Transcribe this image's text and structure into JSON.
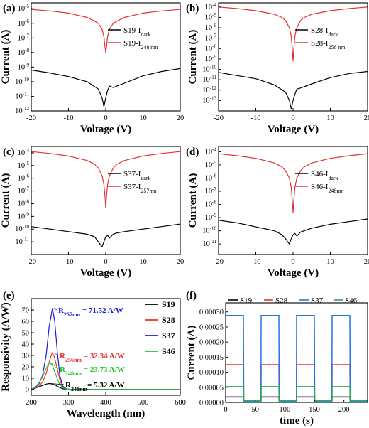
{
  "chart_data": [
    {
      "panel": "(a)",
      "type": "line",
      "xlabel": "Voltage (V)",
      "ylabel": "Current (A)",
      "xlim": [
        -20,
        20
      ],
      "ylim_log10": [
        -12,
        -4.6
      ],
      "y_scale": "log",
      "xticks": [
        "-20",
        "-10",
        "0",
        "10",
        "20"
      ],
      "yticks": [
        -12,
        -11,
        -10,
        -9,
        -8,
        -7,
        -6,
        -5
      ],
      "legend_position": "right-middle",
      "legend": [
        {
          "base": "S19-I",
          "sub": "dark",
          "color": "#000000"
        },
        {
          "base": "S19-I",
          "sub": "248 nm",
          "color": "#e53030"
        }
      ],
      "series": [
        {
          "role": "dark",
          "color": "#000000",
          "x": [
            -20,
            -15,
            -10,
            -5,
            -2,
            -1,
            -0.5,
            0,
            0.5,
            1,
            2,
            5,
            10,
            15,
            20
          ],
          "log10_y": [
            -9.2,
            -9.4,
            -9.65,
            -10.0,
            -10.5,
            -11.1,
            -11.7,
            -11.1,
            -10.6,
            -10.3,
            -10.4,
            -10.1,
            -9.6,
            -9.3,
            -9.1
          ]
        },
        {
          "role": "light",
          "color": "#e53030",
          "x": [
            -20,
            -15,
            -10,
            -5,
            -3,
            -2,
            -1,
            -0.5,
            -0.2,
            0,
            0.2,
            0.5,
            1,
            2,
            3,
            5,
            10,
            15,
            20
          ],
          "log10_y": [
            -5.05,
            -5.15,
            -5.3,
            -5.6,
            -5.85,
            -6.0,
            -6.4,
            -6.9,
            -7.6,
            -8.0,
            -7.6,
            -6.9,
            -6.4,
            -6.0,
            -5.85,
            -5.6,
            -5.3,
            -5.15,
            -5.05
          ]
        }
      ]
    },
    {
      "panel": "(b)",
      "type": "line",
      "xlabel": "Voltage (V)",
      "ylabel": "Current (A)",
      "xlim": [
        -20,
        20
      ],
      "ylim_log10": [
        -14,
        -3.6
      ],
      "y_scale": "log",
      "xticks": [
        "-20",
        "-10",
        "0",
        "10",
        "20"
      ],
      "yticks": [
        -13,
        -12,
        -11,
        -10,
        -9,
        -8,
        -7,
        -6,
        -5,
        -4
      ],
      "legend_position": "right-middle",
      "legend": [
        {
          "base": "S28-I",
          "sub": "dark",
          "color": "#000000"
        },
        {
          "base": "S28-I",
          "sub": "256 nm",
          "color": "#e53030"
        }
      ],
      "series": [
        {
          "role": "dark",
          "color": "#000000",
          "x": [
            -20,
            -15,
            -10,
            -5,
            -2,
            -1,
            -0.5,
            0,
            0.5,
            1,
            2,
            5,
            10,
            15,
            20
          ],
          "log10_y": [
            -10.3,
            -10.6,
            -10.9,
            -11.5,
            -12.2,
            -13.0,
            -13.8,
            -13.0,
            -12.4,
            -11.9,
            -11.8,
            -11.4,
            -10.8,
            -10.4,
            -10.2
          ]
        },
        {
          "role": "light",
          "color": "#e53030",
          "x": [
            -20,
            -15,
            -10,
            -5,
            -3,
            -2,
            -1,
            -0.5,
            -0.2,
            0,
            0.2,
            0.5,
            1,
            2,
            3,
            5,
            10,
            15,
            20
          ],
          "log10_y": [
            -4.0,
            -4.15,
            -4.35,
            -4.7,
            -5.0,
            -5.3,
            -6.0,
            -6.8,
            -8.0,
            -9.2,
            -8.0,
            -6.8,
            -6.0,
            -5.3,
            -5.0,
            -4.7,
            -4.35,
            -4.15,
            -4.0
          ]
        }
      ]
    },
    {
      "panel": "(c)",
      "type": "line",
      "xlabel": "Voltage (V)",
      "ylabel": "Current (A)",
      "xlim": [
        -20,
        20
      ],
      "ylim_log10": [
        -12,
        -3.5
      ],
      "y_scale": "log",
      "xticks": [
        "-20",
        "-10",
        "0",
        "10",
        "20"
      ],
      "yticks": [
        -11,
        -10,
        -9,
        -8,
        -7,
        -6,
        -5,
        -4
      ],
      "legend_position": "right-middle",
      "legend": [
        {
          "base": "S37-I",
          "sub": "dark",
          "color": "#000000"
        },
        {
          "base": "S37-I",
          "sub": "257nm",
          "color": "#e53030"
        }
      ],
      "series": [
        {
          "role": "dark",
          "color": "#000000",
          "x": [
            -20,
            -15,
            -10,
            -5,
            -3,
            -2,
            -1,
            -0.5,
            0,
            0.5,
            1,
            2,
            3,
            5,
            10,
            15,
            20
          ],
          "log10_y": [
            -9.8,
            -10.0,
            -10.2,
            -10.4,
            -10.6,
            -11.0,
            -11.4,
            -11.0,
            -10.6,
            -10.5,
            -10.7,
            -10.4,
            -10.3,
            -10.2,
            -10.0,
            -9.8,
            -9.6
          ]
        },
        {
          "role": "light",
          "color": "#e53030",
          "x": [
            -20,
            -15,
            -10,
            -5,
            -3,
            -2,
            -1,
            -0.5,
            -0.2,
            0,
            0.2,
            0.5,
            1,
            2,
            3,
            5,
            10,
            15,
            20
          ],
          "log10_y": [
            -3.9,
            -4.05,
            -4.25,
            -4.6,
            -4.9,
            -5.2,
            -5.8,
            -6.5,
            -7.4,
            -8.3,
            -7.4,
            -6.5,
            -5.8,
            -5.2,
            -4.9,
            -4.6,
            -4.25,
            -4.05,
            -3.9
          ]
        }
      ]
    },
    {
      "panel": "(d)",
      "type": "line",
      "xlabel": "Voltage (V)",
      "ylabel": "Current (A)",
      "xlim": [
        -20,
        20
      ],
      "ylim_log10": [
        -11.8,
        -3.6
      ],
      "y_scale": "log",
      "xticks": [
        "-20",
        "-10",
        "0",
        "10",
        "20"
      ],
      "yticks": [
        -11,
        -10,
        -9,
        -8,
        -7,
        -6,
        -5,
        -4
      ],
      "legend_position": "right-middle",
      "legend": [
        {
          "base": "S46-I",
          "sub": "dark",
          "color": "#000000"
        },
        {
          "base": "S46-I",
          "sub": "248nm",
          "color": "#e53030"
        }
      ],
      "series": [
        {
          "role": "dark",
          "color": "#000000",
          "x": [
            -20,
            -15,
            -10,
            -5,
            -3,
            -2,
            -1,
            -0.5,
            0,
            0.5,
            1,
            2,
            3,
            5,
            10,
            15,
            20
          ],
          "log10_y": [
            -9.2,
            -9.4,
            -9.7,
            -10.0,
            -10.3,
            -10.6,
            -11.0,
            -10.6,
            -10.3,
            -10.2,
            -10.4,
            -10.1,
            -10.0,
            -9.8,
            -9.5,
            -9.3,
            -9.1
          ]
        },
        {
          "role": "light",
          "color": "#e53030",
          "x": [
            -20,
            -15,
            -10,
            -5,
            -3,
            -2,
            -1,
            -0.5,
            -0.2,
            0,
            0.2,
            0.5,
            1,
            2,
            3,
            5,
            10,
            15,
            20
          ],
          "log10_y": [
            -4.15,
            -4.3,
            -4.5,
            -4.85,
            -5.15,
            -5.45,
            -6.0,
            -6.7,
            -7.7,
            -8.6,
            -7.7,
            -6.7,
            -6.0,
            -5.45,
            -5.15,
            -4.85,
            -4.5,
            -4.3,
            -4.15
          ]
        }
      ]
    },
    {
      "panel": "(e)",
      "type": "line",
      "xlabel": "Wavelength (nm)",
      "ylabel": "Responsivity (A/W)",
      "xlim": [
        200,
        600
      ],
      "ylim": [
        -5,
        80
      ],
      "xticks": [
        200,
        300,
        400,
        500,
        600
      ],
      "yticks": [
        0,
        10,
        20,
        30,
        40,
        50,
        60,
        70
      ],
      "legend_position": "right-top",
      "legend": [
        {
          "label": "S19",
          "color": "#000000"
        },
        {
          "label": "S28",
          "color": "#e53030"
        },
        {
          "label": "S37",
          "color": "#1a1adc"
        },
        {
          "label": "S46",
          "color": "#22c22a"
        }
      ],
      "annotations": [
        {
          "prefix": "R",
          "sub": "257nm",
          "text": " = 71.52 A/W",
          "color": "#1a1adc"
        },
        {
          "prefix": "R",
          "sub": "256nm",
          "text": " = 32.34 A/W",
          "color": "#e53030"
        },
        {
          "prefix": "R",
          "sub": "248nm",
          "text": " = 23.73 A/W",
          "color": "#22c22a"
        },
        {
          "prefix": "R",
          "sub": "248nm",
          "text": "= 5.32 A/W",
          "color": "#000000"
        }
      ],
      "series": [
        {
          "name": "S19",
          "color": "#000000",
          "x": [
            200,
            210,
            220,
            230,
            240,
            248,
            255,
            265,
            275,
            285,
            295,
            310,
            600
          ],
          "y": [
            0.5,
            1.2,
            2.3,
            3.6,
            4.8,
            5.3,
            5.0,
            3.8,
            2.0,
            0.7,
            0.2,
            0.1,
            0.1
          ]
        },
        {
          "name": "S28",
          "color": "#e53030",
          "x": [
            200,
            210,
            220,
            230,
            240,
            248,
            256,
            262,
            270,
            278,
            286,
            295,
            310,
            600
          ],
          "y": [
            0.3,
            1.0,
            2.8,
            6.5,
            14.0,
            24.0,
            32.3,
            29.0,
            18.0,
            7.0,
            2.0,
            0.4,
            0.1,
            0.1
          ]
        },
        {
          "name": "S37",
          "color": "#1a1adc",
          "x": [
            200,
            210,
            220,
            230,
            240,
            248,
            257,
            263,
            270,
            277,
            285,
            295,
            310,
            600
          ],
          "y": [
            0.3,
            1.5,
            4.5,
            12.0,
            30.0,
            55.0,
            71.5,
            60.0,
            33.0,
            12.0,
            3.0,
            0.5,
            0.1,
            0.1
          ]
        },
        {
          "name": "S46",
          "color": "#22c22a",
          "x": [
            200,
            210,
            220,
            230,
            240,
            248,
            256,
            265,
            275,
            285,
            295,
            310,
            600
          ],
          "y": [
            0.5,
            2.0,
            5.5,
            11.0,
            18.5,
            23.7,
            22.0,
            14.0,
            5.5,
            1.5,
            0.3,
            0.1,
            0.1
          ]
        }
      ]
    },
    {
      "panel": "(f)",
      "type": "line",
      "xlabel": "time (s)",
      "ylabel": "Current (A)",
      "xlim": [
        0,
        240
      ],
      "ylim": [
        0,
        0.00033
      ],
      "xticks": [
        0,
        50,
        100,
        150,
        200
      ],
      "yticks": [
        "0.00000",
        "0.00005",
        "0.00010",
        "0.00015",
        "0.00020",
        "0.00025",
        "0.00030"
      ],
      "ytick_values": [
        0,
        5e-05,
        0.0001,
        0.00015,
        0.0002,
        0.00025,
        0.0003
      ],
      "legend_position": "top",
      "legend": [
        {
          "label": "S19",
          "color": "#000000"
        },
        {
          "label": "S28",
          "color": "#e53030"
        },
        {
          "label": "S37",
          "color": "#2277dd"
        },
        {
          "label": "S46",
          "color": "#22aa55"
        }
      ],
      "on_intervals": [
        [
          0,
          30
        ],
        [
          60,
          90
        ],
        [
          120,
          150
        ],
        [
          180,
          210
        ]
      ],
      "series": [
        {
          "name": "S19",
          "color": "#000000",
          "on": 1.8e-05,
          "off": 1.5e-06
        },
        {
          "name": "S28",
          "color": "#e53030",
          "on": 0.000125,
          "off": 4e-06
        },
        {
          "name": "S37",
          "color": "#2277dd",
          "on": 0.000288,
          "off": 5e-06
        },
        {
          "name": "S46",
          "color": "#22aa55",
          "on": 5.2e-05,
          "off": 3e-06
        }
      ]
    }
  ]
}
